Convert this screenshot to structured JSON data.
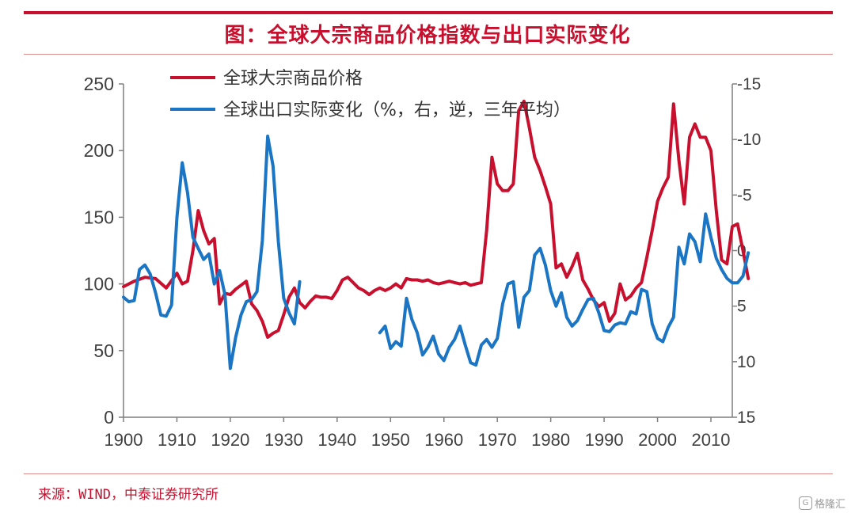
{
  "title": "图：全球大宗商品价格指数与出口实际变化",
  "source": "来源：WIND，中泰证券研究所",
  "watermark": "格隆汇",
  "colors": {
    "accent": "#c8102e",
    "series_price": "#c8102e",
    "series_export": "#1a75c4"
  },
  "chart_data": {
    "type": "line",
    "title": "图：全球大宗商品价格指数与出口实际变化",
    "xlabel": "",
    "ylabel": "",
    "xlim": [
      1900,
      2014
    ],
    "x_ticks": [
      "1900",
      "1910",
      "1920",
      "1930",
      "1940",
      "1950",
      "1960",
      "1970",
      "1980",
      "1990",
      "2000",
      "2010"
    ],
    "y_left": {
      "lim": [
        0,
        250
      ],
      "ticks": [
        "0",
        "50",
        "100",
        "150",
        "200",
        "250"
      ]
    },
    "y_right": {
      "lim": [
        -15,
        15
      ],
      "inverted": true,
      "ticks": [
        "-15",
        "-10",
        "-5",
        "0",
        "5",
        "10",
        "15"
      ]
    },
    "legend": {
      "position": "top-left",
      "entries": [
        "全球大宗商品价格",
        "全球出口实际变化（%，右，逆，三年平均）"
      ]
    },
    "grid": false,
    "series": [
      {
        "name": "全球大宗商品价格",
        "axis": "left",
        "segments": [
          [
            [
              1900,
              98
            ],
            [
              1902,
              102
            ],
            [
              1904,
              105
            ],
            [
              1906,
              104
            ],
            [
              1908,
              97
            ],
            [
              1910,
              108
            ],
            [
              1911,
              100
            ],
            [
              1912,
              102
            ],
            [
              1913,
              125
            ],
            [
              1914,
              155
            ],
            [
              1915,
              140
            ],
            [
              1916,
              130
            ],
            [
              1917,
              134
            ],
            [
              1918,
              85
            ],
            [
              1919,
              93
            ],
            [
              1920,
              92
            ],
            [
              1921,
              96
            ],
            [
              1922,
              99
            ],
            [
              1923,
              102
            ],
            [
              1924,
              85
            ],
            [
              1925,
              80
            ],
            [
              1926,
              72
            ],
            [
              1927,
              60
            ],
            [
              1928,
              63
            ],
            [
              1929,
              65
            ],
            [
              1930,
              77
            ],
            [
              1931,
              90
            ],
            [
              1932,
              97
            ],
            [
              1933,
              86
            ],
            [
              1934,
              82
            ],
            [
              1935,
              87
            ],
            [
              1936,
              91
            ],
            [
              1937,
              90
            ],
            [
              1938,
              90
            ],
            [
              1939,
              89
            ],
            [
              1940,
              95
            ],
            [
              1941,
              103
            ],
            [
              1942,
              105
            ],
            [
              1943,
              101
            ],
            [
              1944,
              97
            ],
            [
              1945,
              95
            ],
            [
              1946,
              92
            ],
            [
              1947,
              95
            ],
            [
              1948,
              97
            ],
            [
              1949,
              95
            ],
            [
              1950,
              97
            ],
            [
              1951,
              100
            ],
            [
              1952,
              97
            ],
            [
              1953,
              104
            ],
            [
              1954,
              103
            ],
            [
              1955,
              103
            ],
            [
              1956,
              102
            ],
            [
              1957,
              103
            ],
            [
              1958,
              101
            ],
            [
              1959,
              100
            ],
            [
              1960,
              101
            ],
            [
              1961,
              102
            ],
            [
              1962,
              101
            ],
            [
              1963,
              100
            ],
            [
              1964,
              101
            ],
            [
              1965,
              99
            ],
            [
              1966,
              100
            ],
            [
              1967,
              101
            ],
            [
              1968,
              140
            ],
            [
              1969,
              195
            ],
            [
              1970,
              175
            ],
            [
              1971,
              170
            ],
            [
              1972,
              170
            ],
            [
              1973,
              175
            ],
            [
              1974,
              230
            ],
            [
              1975,
              237
            ],
            [
              1976,
              217
            ],
            [
              1977,
              195
            ],
            [
              1978,
              185
            ],
            [
              1979,
              173
            ],
            [
              1980,
              160
            ],
            [
              1981,
              112
            ],
            [
              1982,
              115
            ],
            [
              1983,
              105
            ],
            [
              1984,
              113
            ],
            [
              1985,
              123
            ],
            [
              1986,
              103
            ],
            [
              1987,
              96
            ],
            [
              1988,
              88
            ],
            [
              1989,
              83
            ],
            [
              1990,
              86
            ],
            [
              1991,
              72
            ],
            [
              1992,
              78
            ],
            [
              1993,
              100
            ],
            [
              1994,
              88
            ],
            [
              1995,
              91
            ],
            [
              1996,
              97
            ],
            [
              1997,
              101
            ],
            [
              1998,
              120
            ],
            [
              1999,
              140
            ],
            [
              2000,
              162
            ],
            [
              2001,
              172
            ],
            [
              2002,
              180
            ],
            [
              2003,
              235
            ],
            [
              2004,
              193
            ],
            [
              2005,
              160
            ],
            [
              2006,
              210
            ],
            [
              2007,
              220
            ],
            [
              2008,
              210
            ],
            [
              2009,
              210
            ],
            [
              2010,
              200
            ],
            [
              2011,
              155
            ],
            [
              2012,
              118
            ],
            [
              2013,
              115
            ],
            [
              2014,
              143
            ],
            [
              2015,
              145
            ],
            [
              2016,
              125
            ],
            [
              2017,
              104
            ]
          ]
        ]
      },
      {
        "name": "全球出口实际变化（%，右，逆，三年平均）",
        "axis": "right",
        "segments": [
          [
            [
              1900,
              4.2
            ],
            [
              1901,
              4.6
            ],
            [
              1902,
              4.5
            ],
            [
              1903,
              1.7
            ],
            [
              1904,
              1.3
            ],
            [
              1905,
              2.1
            ],
            [
              1906,
              3.8
            ],
            [
              1907,
              5.8
            ],
            [
              1908,
              5.9
            ],
            [
              1909,
              4.9
            ],
            [
              1910,
              -3.0
            ],
            [
              1911,
              -7.9
            ],
            [
              1912,
              -5.2
            ],
            [
              1913,
              -1.2
            ],
            [
              1914,
              -0.2
            ],
            [
              1915,
              0.8
            ],
            [
              1916,
              0.3
            ],
            [
              1917,
              3.0
            ],
            [
              1918,
              1.8
            ],
            [
              1919,
              4.0
            ],
            [
              1920,
              10.6
            ],
            [
              1921,
              7.8
            ],
            [
              1922,
              5.8
            ],
            [
              1923,
              4.6
            ],
            [
              1924,
              4.4
            ],
            [
              1925,
              3.7
            ],
            [
              1926,
              -0.9
            ],
            [
              1927,
              -10.3
            ],
            [
              1928,
              -7.6
            ],
            [
              1929,
              -0.8
            ],
            [
              1930,
              4.3
            ],
            [
              1931,
              5.6
            ],
            [
              1932,
              6.6
            ],
            [
              1933,
              2.8
            ]
          ],
          [
            [
              1948,
              7.4
            ],
            [
              1949,
              6.8
            ],
            [
              1950,
              8.8
            ],
            [
              1951,
              8.2
            ],
            [
              1952,
              8.6
            ],
            [
              1953,
              4.3
            ],
            [
              1954,
              6.2
            ],
            [
              1955,
              7.4
            ],
            [
              1956,
              9.4
            ],
            [
              1957,
              8.7
            ],
            [
              1958,
              7.7
            ],
            [
              1959,
              9.3
            ],
            [
              1960,
              9.9
            ],
            [
              1961,
              8.7
            ],
            [
              1962,
              8.0
            ],
            [
              1963,
              6.8
            ],
            [
              1964,
              8.5
            ],
            [
              1965,
              10.1
            ],
            [
              1966,
              10.3
            ],
            [
              1967,
              8.5
            ],
            [
              1968,
              8.0
            ],
            [
              1969,
              8.7
            ],
            [
              1970,
              7.9
            ],
            [
              1971,
              4.8
            ],
            [
              1972,
              3.0
            ],
            [
              1973,
              2.8
            ],
            [
              1974,
              6.9
            ],
            [
              1975,
              4.2
            ],
            [
              1976,
              3.6
            ],
            [
              1977,
              0.4
            ],
            [
              1978,
              -0.2
            ],
            [
              1979,
              1.3
            ],
            [
              1980,
              3.6
            ],
            [
              1981,
              5.0
            ],
            [
              1982,
              3.8
            ],
            [
              1983,
              6.0
            ],
            [
              1984,
              6.8
            ],
            [
              1985,
              6.3
            ],
            [
              1986,
              5.3
            ],
            [
              1987,
              4.4
            ],
            [
              1988,
              4.3
            ],
            [
              1989,
              5.6
            ],
            [
              1990,
              7.2
            ],
            [
              1991,
              7.3
            ],
            [
              1992,
              6.7
            ],
            [
              1993,
              6.5
            ],
            [
              1994,
              6.6
            ],
            [
              1995,
              5.5
            ],
            [
              1996,
              5.7
            ],
            [
              1997,
              3.5
            ],
            [
              1998,
              3.7
            ],
            [
              1999,
              6.6
            ],
            [
              2000,
              7.9
            ],
            [
              2001,
              8.2
            ],
            [
              2002,
              6.9
            ],
            [
              2003,
              6.0
            ],
            [
              2004,
              -0.3
            ],
            [
              2005,
              1.2
            ],
            [
              2006,
              -1.5
            ],
            [
              2007,
              -0.8
            ],
            [
              2008,
              1.0
            ],
            [
              2009,
              -3.3
            ],
            [
              2010,
              -1.2
            ],
            [
              2011,
              0.7
            ],
            [
              2012,
              1.7
            ],
            [
              2013,
              2.5
            ],
            [
              2014,
              2.9
            ],
            [
              2015,
              2.9
            ],
            [
              2016,
              2.3
            ],
            [
              2017,
              0.2
            ]
          ]
        ]
      }
    ]
  }
}
